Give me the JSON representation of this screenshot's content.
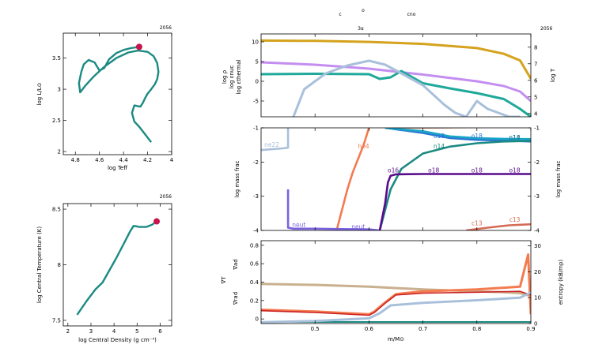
{
  "header": {
    "top_line": [
      "c",
      "o",
      "cno"
    ],
    "second_line": "3α"
  },
  "colors": {
    "track": "#1b8a82",
    "marker": "#c8144b",
    "rho": "#c48ef0",
    "eps_nuc": "#1fa99a",
    "eps_thermal": "#a9c0db",
    "logT": "#d4a21c",
    "he4": "#f47a4f",
    "c12": "#d2a68b",
    "o16": "#5a0a8c",
    "ne20": "#2a74d4",
    "mg24": "#1aa6c7",
    "si28": "#1b8a82",
    "n14": "#1b8a82",
    "ne22": "#a9c0db",
    "neut": "#7a62e0",
    "c13": "#d66b55",
    "grad_ad": "#c9b08f",
    "grad_rad": "#f47a4f",
    "grad_T": "#cc2222",
    "entropy": "#a9c0db"
  },
  "chart_data": [
    {
      "id": "hr",
      "type": "line",
      "model_number": "2056",
      "xlabel": "log Teff",
      "ylabel": "log L/L⊙",
      "xlim": [
        4.9,
        4.0
      ],
      "ylim": [
        1.95,
        3.9
      ],
      "xticks": [
        "4.8",
        "4.6",
        "4.4",
        "4.2",
        "4"
      ],
      "yticks": [
        "2",
        "2.5",
        "3",
        "3.5"
      ],
      "series": [
        {
          "x": [
            4.17,
            4.23,
            4.27,
            4.31,
            4.33,
            4.31,
            4.26,
            4.24,
            4.22,
            4.2,
            4.17,
            4.14,
            4.12,
            4.11,
            4.12,
            4.15,
            4.2,
            4.28,
            4.36,
            4.46,
            4.56,
            4.65,
            4.72,
            4.76,
            4.77,
            4.75,
            4.73,
            4.69,
            4.64,
            4.6,
            4.56,
            4.52,
            4.46,
            4.4,
            4.34,
            4.27
          ],
          "y": [
            2.15,
            2.3,
            2.4,
            2.48,
            2.62,
            2.74,
            2.72,
            2.78,
            2.86,
            2.93,
            3.0,
            3.08,
            3.16,
            3.28,
            3.42,
            3.53,
            3.6,
            3.62,
            3.59,
            3.5,
            3.36,
            3.2,
            3.05,
            2.95,
            3.1,
            3.28,
            3.4,
            3.47,
            3.43,
            3.3,
            3.34,
            3.48,
            3.58,
            3.63,
            3.66,
            3.68
          ]
        }
      ],
      "marker": {
        "x": 4.27,
        "y": 3.68
      }
    },
    {
      "id": "rhoT",
      "type": "line",
      "model_number": "2056",
      "xlabel": "log Central Density (g cm⁻³)",
      "ylabel": "log Central Temperature (K)",
      "xlim": [
        1.8,
        6.5
      ],
      "ylim": [
        7.45,
        8.55
      ],
      "xticks": [
        "2",
        "3",
        "4",
        "5",
        "6"
      ],
      "yticks": [
        "7.5",
        "8",
        "8.5"
      ],
      "series": [
        {
          "x": [
            2.4,
            2.8,
            3.2,
            3.5,
            3.8,
            4.1,
            4.4,
            4.7,
            4.85,
            5.1,
            5.4,
            5.65,
            5.85
          ],
          "y": [
            7.55,
            7.67,
            7.78,
            7.84,
            7.95,
            8.06,
            8.18,
            8.3,
            8.35,
            8.34,
            8.34,
            8.36,
            8.39
          ]
        }
      ],
      "marker": {
        "x": 5.85,
        "y": 8.39
      }
    },
    {
      "id": "profile-top",
      "type": "line",
      "model_number": "2056",
      "xlim": [
        0.4,
        0.9
      ],
      "ylim": [
        -9,
        12
      ],
      "yticks": [
        "-5",
        "0",
        "5",
        "10"
      ],
      "right_ylim": [
        3.8,
        8.8
      ],
      "right_yticks": [
        "4",
        "5",
        "6",
        "7",
        "8"
      ],
      "left_labels": [
        "log ρ",
        "log εnuc",
        "log εthermal"
      ],
      "right_label": "log T",
      "series": [
        {
          "key": "logT",
          "axis": "right",
          "x": [
            0.4,
            0.5,
            0.6,
            0.7,
            0.8,
            0.85,
            0.88,
            0.9
          ],
          "y": [
            8.4,
            8.38,
            8.32,
            8.2,
            7.95,
            7.6,
            7.2,
            6.1
          ]
        },
        {
          "key": "rho",
          "axis": "left",
          "x": [
            0.4,
            0.5,
            0.6,
            0.7,
            0.8,
            0.85,
            0.88,
            0.9
          ],
          "y": [
            4.8,
            4.2,
            3.2,
            1.7,
            0.0,
            -1.2,
            -2.6,
            -5.0
          ]
        },
        {
          "key": "eps_nuc",
          "axis": "left",
          "x": [
            0.4,
            0.5,
            0.6,
            0.62,
            0.64,
            0.66,
            0.7,
            0.75,
            0.8,
            0.85,
            0.88,
            0.9
          ],
          "y": [
            1.8,
            1.9,
            1.8,
            0.6,
            1.0,
            2.6,
            -0.5,
            -1.8,
            -3.0,
            -4.5,
            -7.0,
            -9.0
          ]
        },
        {
          "key": "eps_thermal",
          "axis": "left",
          "x": [
            0.46,
            0.48,
            0.52,
            0.56,
            0.6,
            0.63,
            0.66,
            0.7,
            0.74,
            0.76,
            0.78,
            0.8,
            0.82,
            0.86,
            0.88
          ],
          "y": [
            -9.0,
            -2.0,
            2.0,
            4.0,
            5.2,
            4.2,
            2.0,
            -1.0,
            -6.0,
            -8.0,
            -9.0,
            -5.0,
            -7.0,
            -9.0,
            -9.0
          ]
        }
      ]
    },
    {
      "id": "profile-abund",
      "type": "line",
      "model_number": "2056",
      "ylabel": "log mass frac",
      "xlim": [
        0.4,
        0.9
      ],
      "ylim": [
        -4,
        -1
      ],
      "yticks": [
        "-4",
        "-3",
        "-2",
        "-1"
      ],
      "right_yticks": [
        "-4",
        "-3",
        "-2",
        "-1"
      ],
      "series": [
        {
          "key": "he4",
          "x": [
            0.54,
            0.55,
            0.56,
            0.57,
            0.58,
            0.59,
            0.6
          ],
          "y": [
            -4.0,
            -3.4,
            -2.8,
            -2.3,
            -1.9,
            -1.5,
            -1.0
          ]
        },
        {
          "key": "ne22",
          "x": [
            0.4,
            0.44,
            0.45,
            0.45
          ],
          "y": [
            -1.65,
            -1.6,
            -1.58,
            -1.0
          ]
        },
        {
          "key": "neut",
          "x": [
            0.45,
            0.45,
            0.46,
            0.5,
            0.55,
            0.6,
            0.62
          ],
          "y": [
            -2.8,
            -3.92,
            -3.95,
            -3.95,
            -3.96,
            -3.97,
            -4.0
          ]
        },
        {
          "key": "c12",
          "x": [
            0.63,
            0.7,
            0.8,
            0.85,
            0.9
          ],
          "y": [
            -1.0,
            -1.0,
            -0.98,
            -0.96,
            -0.95
          ]
        },
        {
          "key": "ne20",
          "x": [
            0.63,
            0.7,
            0.75,
            0.8,
            0.85,
            0.9
          ],
          "y": [
            -1.0,
            -1.15,
            -1.3,
            -1.35,
            -1.37,
            -1.4
          ]
        },
        {
          "key": "mg24",
          "x": [
            0.63,
            0.7,
            0.75,
            0.8,
            0.85,
            0.9
          ],
          "y": [
            -1.0,
            -1.1,
            -1.25,
            -1.3,
            -1.32,
            -1.33
          ]
        },
        {
          "key": "n14",
          "x": [
            0.62,
            0.64,
            0.66,
            0.7,
            0.75,
            0.8,
            0.85,
            0.9
          ],
          "y": [
            -4.0,
            -2.8,
            -2.2,
            -1.75,
            -1.55,
            -1.45,
            -1.4,
            -1.38
          ]
        },
        {
          "key": "o16",
          "x": [
            0.62,
            0.63,
            0.635,
            0.64,
            0.65,
            0.7,
            0.8,
            0.9
          ],
          "y": [
            -4.0,
            -3.2,
            -2.6,
            -2.4,
            -2.36,
            -2.35,
            -2.35,
            -2.35
          ]
        },
        {
          "key": "c13",
          "x": [
            0.78,
            0.82,
            0.86,
            0.9
          ],
          "y": [
            -4.0,
            -3.92,
            -3.85,
            -3.82
          ]
        }
      ],
      "labels": [
        {
          "text": "ne22",
          "key": "ne22",
          "x": 0.42,
          "y": -1.55
        },
        {
          "text": "he4",
          "key": "he4",
          "x": 0.59,
          "y": -1.6
        },
        {
          "text": "neut",
          "key": "neut",
          "x": 0.47,
          "y": -3.9
        },
        {
          "text": "neut",
          "key": "neut",
          "x": 0.58,
          "y": -3.95
        },
        {
          "text": "ne20",
          "key": "ne20",
          "x": 0.65,
          "y": -1.0
        },
        {
          "text": "c12",
          "key": "c12",
          "x": 0.68,
          "y": -1.0
        },
        {
          "text": "c12",
          "key": "c12",
          "x": 0.86,
          "y": -0.95
        },
        {
          "text": "o18",
          "key": "ne20",
          "x": 0.73,
          "y": -1.3
        },
        {
          "text": "o18",
          "key": "ne20",
          "x": 0.8,
          "y": -1.3
        },
        {
          "text": "o18",
          "key": "ne20",
          "x": 0.87,
          "y": -1.35
        },
        {
          "text": "n14",
          "key": "n14",
          "x": 0.73,
          "y": -1.6
        },
        {
          "text": "n14",
          "key": "n14",
          "x": 0.87,
          "y": -1.35
        },
        {
          "text": "o16",
          "key": "o16",
          "x": 0.645,
          "y": -2.3
        },
        {
          "text": "o18",
          "key": "o16",
          "x": 0.72,
          "y": -2.3
        },
        {
          "text": "o18",
          "key": "o16",
          "x": 0.8,
          "y": -2.3
        },
        {
          "text": "o18",
          "key": "o16",
          "x": 0.87,
          "y": -2.3
        },
        {
          "text": "c13",
          "key": "c13",
          "x": 0.8,
          "y": -3.85
        },
        {
          "text": "c13",
          "key": "c13",
          "x": 0.87,
          "y": -3.75
        }
      ]
    },
    {
      "id": "profile-grad",
      "type": "line",
      "model_number": "2056",
      "xlabel": "m/M⊙",
      "xlim": [
        0.4,
        0.9
      ],
      "xticks": [
        "0.5",
        "0.6",
        "0.7",
        "0.8",
        "0.9"
      ],
      "ylim": [
        -0.05,
        0.85
      ],
      "yticks": [
        "0",
        "0.2",
        "0.4",
        "0.6",
        "0.8"
      ],
      "right_ylim": [
        0,
        32
      ],
      "right_yticks": [
        "0",
        "10",
        "20",
        "30"
      ],
      "left_labels": [
        "∇ad",
        "∇T",
        "∇rad"
      ],
      "right_label": "entropy (kB/mp)",
      "series": [
        {
          "key": "grad_ad",
          "axis": "left",
          "x": [
            0.4,
            0.5,
            0.6,
            0.7,
            0.8,
            0.85,
            0.88,
            0.9
          ],
          "y": [
            0.38,
            0.37,
            0.35,
            0.32,
            0.3,
            0.29,
            0.28,
            0.25
          ]
        },
        {
          "key": "grad_rad",
          "axis": "left",
          "x": [
            0.4,
            0.5,
            0.6,
            0.61,
            0.63,
            0.65,
            0.7,
            0.8,
            0.88,
            0.895,
            0.9
          ],
          "y": [
            0.1,
            0.08,
            0.05,
            0.08,
            0.18,
            0.27,
            0.3,
            0.32,
            0.35,
            0.7,
            0.05
          ]
        },
        {
          "key": "grad_T",
          "axis": "left",
          "x": [
            0.4,
            0.5,
            0.6,
            0.61,
            0.63,
            0.65,
            0.7,
            0.8,
            0.88,
            0.9
          ],
          "y": [
            0.09,
            0.07,
            0.04,
            0.07,
            0.17,
            0.26,
            0.28,
            0.29,
            0.3,
            0.26
          ]
        },
        {
          "key": "entropy",
          "axis": "right",
          "x": [
            0.4,
            0.5,
            0.6,
            0.62,
            0.64,
            0.7,
            0.8,
            0.88,
            0.9
          ],
          "y": [
            0.5,
            1.0,
            2.0,
            4.0,
            7.0,
            8.0,
            9.0,
            10.0,
            12.0
          ]
        }
      ]
    }
  ]
}
